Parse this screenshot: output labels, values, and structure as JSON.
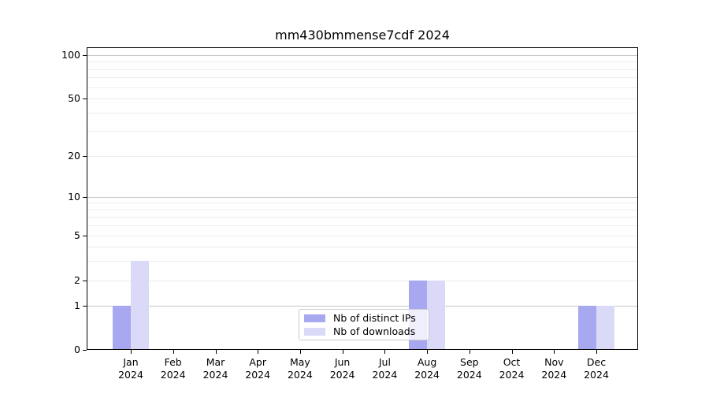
{
  "title": "mm430bmmense7cdf 2024",
  "chart_data": {
    "type": "bar",
    "title": "mm430bmmense7cdf 2024",
    "categories": [
      "Jan 2024",
      "Feb 2024",
      "Mar 2024",
      "Apr 2024",
      "May 2024",
      "Jun 2024",
      "Jul 2024",
      "Aug 2024",
      "Sep 2024",
      "Oct 2024",
      "Nov 2024",
      "Dec 2024"
    ],
    "months": [
      "Jan",
      "Feb",
      "Mar",
      "Apr",
      "May",
      "Jun",
      "Jul",
      "Aug",
      "Sep",
      "Oct",
      "Nov",
      "Dec"
    ],
    "year": "2024",
    "series": [
      {
        "name": "Nb of distinct IPs",
        "color": "#a8a8f0",
        "values": [
          1,
          0,
          0,
          0,
          0,
          0,
          0,
          2,
          0,
          0,
          0,
          1
        ]
      },
      {
        "name": "Nb of downloads",
        "color": "#dadaf8",
        "values": [
          3,
          0,
          0,
          0,
          0,
          0,
          0,
          2,
          0,
          0,
          0,
          1
        ]
      }
    ],
    "yscale": "log-like",
    "ylim": [
      0,
      111
    ],
    "y_ticks": [
      0,
      1,
      2,
      5,
      10,
      20,
      50,
      100
    ],
    "y_tick_labels": [
      "0",
      "1",
      "2",
      "5",
      "10",
      "20",
      "50",
      "100"
    ],
    "y_major_gridlines": [
      1,
      10,
      100
    ],
    "y_minor_gridlines": [
      2,
      3,
      4,
      5,
      6,
      7,
      8,
      9,
      20,
      30,
      40,
      50,
      60,
      70,
      80,
      90
    ],
    "grid": true,
    "legend_position": "lower center"
  },
  "legend": {
    "items": [
      {
        "label": "Nb of distinct IPs",
        "color": "#a8a8f0"
      },
      {
        "label": "Nb of downloads",
        "color": "#dadaf8"
      }
    ]
  }
}
